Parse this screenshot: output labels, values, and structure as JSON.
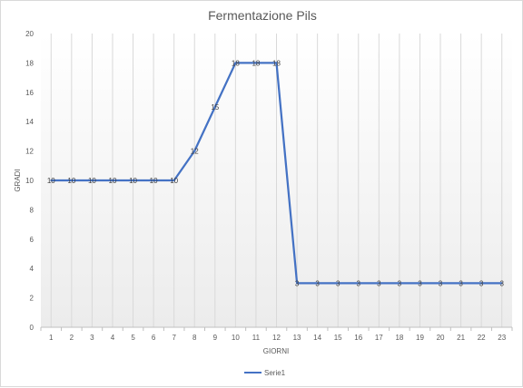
{
  "chart_data": {
    "type": "line",
    "title": "Fermentazione Pils",
    "xlabel": "GIORNI",
    "ylabel": "GRADI",
    "categories": [
      "1",
      "2",
      "3",
      "4",
      "5",
      "6",
      "7",
      "8",
      "9",
      "10",
      "11",
      "12",
      "13",
      "14",
      "15",
      "16",
      "17",
      "18",
      "19",
      "20",
      "21",
      "22",
      "23"
    ],
    "series": [
      {
        "name": "Serie1",
        "values": [
          10,
          10,
          10,
          10,
          10,
          10,
          10,
          12,
          15,
          18,
          18,
          18,
          3,
          3,
          3,
          3,
          3,
          3,
          3,
          3,
          3,
          3,
          3
        ]
      }
    ],
    "ylim": [
      0,
      20
    ],
    "yticks": [
      "0",
      "2",
      "4",
      "6",
      "8",
      "10",
      "12",
      "14",
      "16",
      "18",
      "20"
    ],
    "data_labels": true,
    "grid": "vertical",
    "legend": "bottom",
    "colors": {
      "series": "#4472c4",
      "grid": "#d9d9d9",
      "plot_gradient_bottom": "#ececec"
    }
  }
}
